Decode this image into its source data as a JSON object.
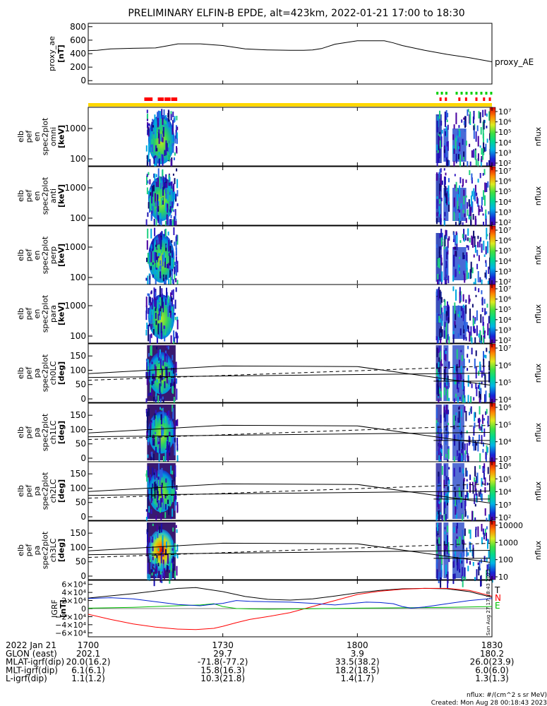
{
  "title": "PRELIMINARY ELFIN-B EPDE, alt=423km, 2022-01-21 17:00 to 18:30",
  "time_axis": {
    "tick_labels": [
      "1700",
      "1730",
      "1800",
      "1830"
    ],
    "tick_minutes": [
      0,
      30,
      60,
      90
    ],
    "range_minutes": [
      0,
      90
    ]
  },
  "ae_panel": {
    "ylabel": "proxy_ae [nT]",
    "ylabel_lines": [
      "proxy_ae",
      "[nT]"
    ],
    "series_label": "proxy_AE",
    "yticks": [
      800,
      600,
      400,
      200,
      0
    ],
    "ylim": [
      -50,
      850
    ]
  },
  "bar_panel": {
    "base_color": "#ffd700",
    "red_color": "#ff0000",
    "green_color": "#00d000",
    "red_segments_min": [
      [
        12.5,
        14.5
      ],
      [
        15.5,
        17
      ],
      [
        17,
        18.5
      ],
      [
        18.5,
        20
      ]
    ],
    "red_small_min": [
      78.3,
      79.5,
      82.5,
      84,
      86.3,
      88,
      89.3
    ],
    "green_small_min": [
      77.6,
      78.6,
      79.6,
      81.9,
      83.0,
      84.1,
      85.2,
      86.3,
      87.4,
      88.5,
      89.6
    ]
  },
  "spec_panels": [
    {
      "ylabel_lines": [
        "elb",
        "pef",
        "en",
        "spec2plot",
        "omni",
        "[keV]"
      ],
      "yticks": [
        "1000",
        "100"
      ],
      "cb_label": "nflux",
      "cb_ticks": [
        "10⁷",
        "10⁶",
        "10⁵",
        "10⁴",
        "10³",
        "10²"
      ]
    },
    {
      "ylabel_lines": [
        "elb",
        "pef",
        "en",
        "spec2plot",
        "anti",
        "[keV]"
      ],
      "yticks": [
        "1000",
        "100"
      ],
      "cb_label": "nflux",
      "cb_ticks": [
        "10⁷",
        "10⁶",
        "10⁵",
        "10⁴",
        "10³",
        "10²"
      ]
    },
    {
      "ylabel_lines": [
        "elb",
        "pef",
        "en",
        "spec2plot",
        "perp",
        "[keV]"
      ],
      "yticks": [
        "1000",
        "100"
      ],
      "cb_label": "nflux",
      "cb_ticks": [
        "10⁷",
        "10⁶",
        "10⁵",
        "10⁴",
        "10³",
        "10²"
      ]
    },
    {
      "ylabel_lines": [
        "elb",
        "pef",
        "en",
        "spec2plot",
        "para",
        "[keV]"
      ],
      "yticks": [
        "1000",
        "100"
      ],
      "cb_label": "nflux",
      "cb_ticks": [
        "10⁷",
        "10⁶",
        "10⁵",
        "10⁴",
        "10³",
        "10²"
      ]
    }
  ],
  "pa_panels": [
    {
      "ylabel_lines": [
        "elb",
        "pef",
        "pa",
        "spec2plot",
        "ch0LC",
        "[deg]"
      ],
      "yticks": [
        "150",
        "100",
        "50",
        "0"
      ],
      "cb_label": "nflux",
      "cb_ticks": [
        "10⁷",
        "10⁶",
        "10⁵",
        "10⁴"
      ]
    },
    {
      "ylabel_lines": [
        "elb",
        "pef",
        "pa",
        "spec2plot",
        "ch1LC",
        "[deg]"
      ],
      "yticks": [
        "150",
        "100",
        "50",
        "0"
      ],
      "cb_label": "nflux",
      "cb_ticks": [
        "10⁶",
        "10⁵",
        "10⁴",
        "10³"
      ]
    },
    {
      "ylabel_lines": [
        "elb",
        "pef",
        "pa",
        "spec2plot",
        "ch2LC",
        "[deg]"
      ],
      "yticks": [
        "150",
        "100",
        "50",
        "0"
      ],
      "cb_label": "nflux",
      "cb_ticks": [
        "10⁶",
        "10⁵",
        "10⁴",
        "10³",
        "10²"
      ]
    },
    {
      "ylabel_lines": [
        "elb",
        "pef",
        "pa",
        "spec2plot",
        "ch3LC",
        "[deg]"
      ],
      "yticks": [
        "150",
        "100",
        "50",
        "0"
      ],
      "cb_label": "nflux",
      "cb_ticks": [
        "10000",
        "1000",
        "100",
        "10"
      ]
    }
  ],
  "igrf_panel": {
    "ylabel": "IGRF [nT]",
    "ylabel_lines": [
      "IGRF",
      "[nT]"
    ],
    "yticks": [
      "6×10⁴",
      "4×10⁴",
      "2×10⁴",
      "0",
      "−2×10⁴",
      "−4×10⁴",
      "−6×10⁴"
    ],
    "legend": [
      {
        "label": "T",
        "color": "#000000"
      },
      {
        "label": "N",
        "color": "#ff0000"
      },
      {
        "label": "E",
        "color": "#00c000"
      }
    ],
    "side_text": "Sun Aug 27 17:18:43 2023"
  },
  "orbit_table": {
    "rows": [
      {
        "label": "2022 Jan 21",
        "values": [
          "1700",
          "1730",
          "1800",
          "1830"
        ]
      },
      {
        "label": "GLON (east)",
        "values": [
          "202.1",
          "29.7",
          "3.9",
          "180.2"
        ]
      },
      {
        "label": "MLAT-igrf(dip)",
        "values": [
          "20.0(16.2)",
          "-71.8(-77.2)",
          "33.5(38.2)",
          "26.0(23.9)"
        ]
      },
      {
        "label": "MLT-igrf(dip)",
        "values": [
          "6.1(6.1)",
          "15.8(16.3)",
          "18.2(18.5)",
          "6.0(6.0)"
        ]
      },
      {
        "label": "L-igrf(dip)",
        "values": [
          "1.1(1.2)",
          "10.3(21.8)",
          "1.4(1.7)",
          "1.3(1.3)"
        ]
      }
    ]
  },
  "footer": {
    "units": "nflux: #/(cm^2 s sr MeV)",
    "created": "Created: Mon Aug 28 00:18:43 2023"
  },
  "chart_data": {
    "type": "line",
    "title": "PRELIMINARY ELFIN-B EPDE, alt=423km, 2022-01-21 17:00 to 18:30",
    "x_unit_note": "minutes after 17:00",
    "xlabel": "",
    "series": [
      {
        "name": "proxy_AE",
        "x": [
          0,
          2,
          5,
          10,
          15,
          18,
          20,
          25,
          30,
          35,
          40,
          45,
          48,
          50,
          52,
          55,
          60,
          63,
          66,
          68,
          70,
          75,
          80,
          85,
          90
        ],
        "y": [
          445,
          450,
          470,
          480,
          485,
          520,
          545,
          545,
          520,
          470,
          455,
          450,
          450,
          455,
          475,
          540,
          590,
          590,
          590,
          560,
          520,
          450,
          390,
          340,
          280
        ],
        "ylim": [
          -50,
          850
        ]
      },
      {
        "name": "T",
        "x": [
          0,
          10,
          20,
          24,
          30,
          35,
          40,
          45,
          50,
          55,
          60,
          65,
          70,
          75,
          80,
          85,
          90
        ],
        "y": [
          26000,
          37000,
          50000,
          52000,
          42000,
          30000,
          23000,
          21000,
          24000,
          31000,
          39000,
          45000,
          49000,
          50000,
          49000,
          42000,
          28000
        ]
      },
      {
        "name": "N",
        "x": [
          0,
          5,
          10,
          15,
          20,
          24,
          28,
          30,
          33,
          36,
          40,
          45,
          50,
          55,
          60,
          65,
          70,
          75,
          80,
          85,
          90
        ],
        "y": [
          -14000,
          -27000,
          -38000,
          -46000,
          -51000,
          -52000,
          -49000,
          -44000,
          -35000,
          -27000,
          -20000,
          -10000,
          5000,
          20000,
          35000,
          43000,
          48000,
          50000,
          50000,
          45000,
          31000
        ]
      },
      {
        "name": "E",
        "x": [
          0,
          10,
          20,
          25,
          28,
          30,
          33,
          36,
          40,
          50,
          60,
          70,
          80,
          90
        ],
        "y": [
          1000,
          3000,
          7000,
          9000,
          12000,
          5000,
          100,
          -800,
          -1500,
          -400,
          1000,
          2000,
          3000,
          5000
        ]
      },
      {
        "name": "blue",
        "x": [
          0,
          5,
          10,
          15,
          20,
          25,
          28,
          30,
          33,
          36,
          40,
          45,
          50,
          55,
          60,
          62,
          65,
          68,
          70,
          72,
          75,
          80,
          85,
          90
        ],
        "y": [
          25000,
          27000,
          24000,
          17000,
          10000,
          7000,
          11000,
          13000,
          20000,
          18000,
          17000,
          16000,
          13000,
          9000,
          14000,
          16000,
          15000,
          12000,
          5000,
          1000,
          4000,
          12000,
          20000,
          25000
        ]
      }
    ],
    "ylim": [
      -70000,
      70000
    ],
    "spectrogram_intervals_min": [
      [
        12.8,
        19.8
      ],
      [
        77.5,
        78.8
      ],
      [
        79.2,
        80.3
      ],
      [
        81.2,
        90
      ]
    ],
    "energy_range_kev": [
      50,
      6000
    ],
    "pitch_angle_range_deg": [
      0,
      180
    ],
    "lc_lines": [
      {
        "style": "solid",
        "x": [
          0,
          30,
          60,
          90
        ],
        "y": [
          88,
          115,
          113,
          47
        ]
      },
      {
        "style": "solid",
        "x": [
          0,
          90
        ],
        "y": [
          75,
          90
        ]
      },
      {
        "style": "dashed",
        "x": [
          0,
          90
        ],
        "y": [
          65,
          115
        ]
      },
      {
        "style": "solid",
        "x": [
          77,
          90
        ],
        "y": [
          62,
          62
        ]
      }
    ]
  }
}
